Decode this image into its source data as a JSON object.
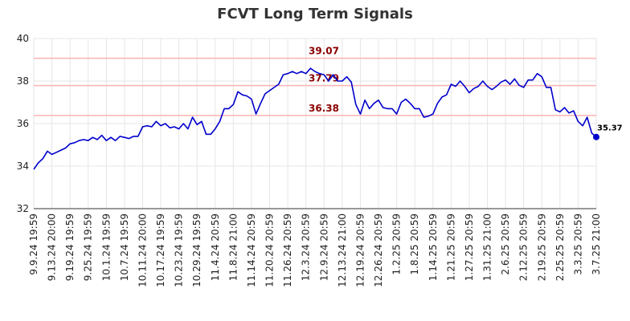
{
  "chart_data": {
    "type": "line",
    "title": "FCVT Long Term Signals",
    "xlabel": "",
    "ylabel": "",
    "ylim": [
      32,
      40
    ],
    "yticks": [
      "32",
      "34",
      "36",
      "38",
      "40"
    ],
    "grid": true,
    "legend": "none",
    "line_color": "#0000cc",
    "level_line_color": "#ffb3b3",
    "level_label_color": "#8b0000",
    "levels": [
      {
        "value": 39.07,
        "label": "39.07"
      },
      {
        "value": 37.79,
        "label": "37.79"
      },
      {
        "value": 36.38,
        "label": "36.38"
      }
    ],
    "last_point": {
      "value": 35.37,
      "label": "35.37"
    },
    "xtick_labels": [
      "9.9.24 19:59",
      "9.13.24 20:00",
      "9.19.24 19:59",
      "9.25.24 19:59",
      "10.1.24 19:59",
      "10.7.24 19:59",
      "10.11.24 20:00",
      "10.17.24 19:59",
      "10.23.24 19:59",
      "10.29.24 19:59",
      "11.4.24 20:59",
      "11.8.24 21:00",
      "11.14.24 20:59",
      "11.20.24 20:59",
      "11.26.24 20:59",
      "12.3.24 20:59",
      "12.9.24 20:59",
      "12.13.24 21:00",
      "12.19.24 20:59",
      "12.26.24 20:59",
      "1.2.25 20:59",
      "1.8.25 20:59",
      "1.14.25 20:59",
      "1.21.25 20:59",
      "1.27.25 20:59",
      "1.31.25 21:00",
      "2.6.25 20:59",
      "2.12.25 20:59",
      "2.19.25 20:59",
      "2.25.25 20:59",
      "3.3.25 20:59",
      "3.7.25 21:00"
    ],
    "series": [
      {
        "values": [
          33.85,
          34.15,
          34.35,
          34.7,
          34.55,
          34.65,
          34.75,
          34.85,
          35.05,
          35.1,
          35.2,
          35.25,
          35.2,
          35.35,
          35.25,
          35.45,
          35.2,
          35.35,
          35.2,
          35.4,
          35.35,
          35.3,
          35.4,
          35.4,
          35.85,
          35.9,
          35.85,
          36.1,
          35.9,
          36.0,
          35.8,
          35.85,
          35.75,
          36.0,
          35.75,
          36.3,
          35.95,
          36.1,
          35.5,
          35.5,
          35.75,
          36.1,
          36.7,
          36.7,
          36.9,
          37.5,
          37.35,
          37.3,
          37.15,
          36.45,
          36.95,
          37.4,
          37.55,
          37.7,
          37.85,
          38.3,
          38.35,
          38.45,
          38.35,
          38.45,
          38.35,
          38.6,
          38.45,
          38.35,
          38.3,
          38.0,
          38.3,
          38.0,
          38.0,
          38.2,
          37.95,
          36.9,
          36.45,
          37.1,
          36.7,
          36.95,
          37.1,
          36.75,
          36.7,
          36.7,
          36.45,
          37.0,
          37.15,
          36.95,
          36.7,
          36.7,
          36.3,
          36.35,
          36.45,
          36.95,
          37.25,
          37.35,
          37.85,
          37.75,
          38.0,
          37.75,
          37.45,
          37.65,
          37.75,
          38.0,
          37.75,
          37.6,
          37.75,
          37.95,
          38.05,
          37.85,
          38.1,
          37.8,
          37.7,
          38.05,
          38.05,
          38.35,
          38.2,
          37.7,
          37.7,
          36.65,
          36.55,
          36.75,
          36.5,
          36.6,
          36.1,
          35.9,
          36.3,
          35.55,
          35.37
        ]
      }
    ]
  }
}
